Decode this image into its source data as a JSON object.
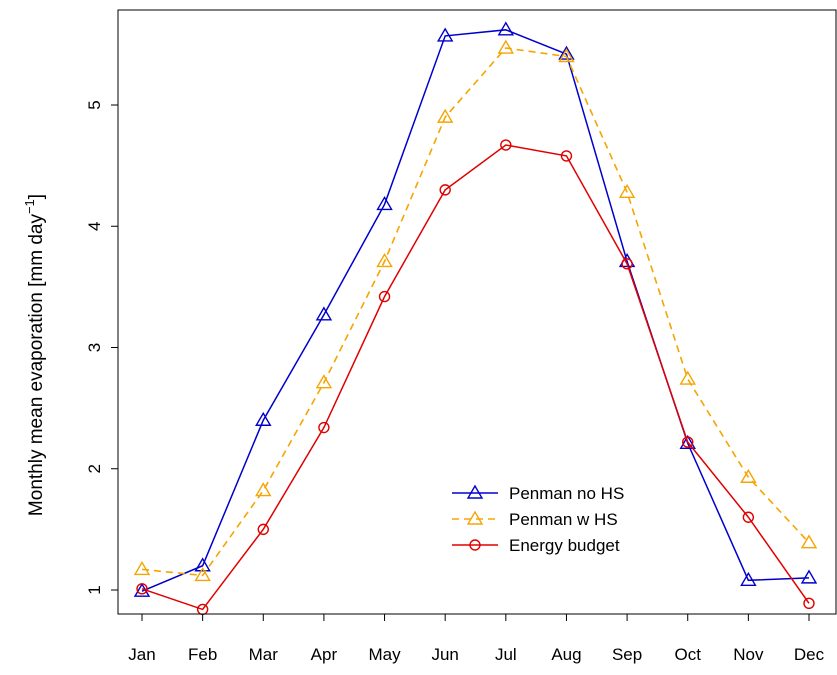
{
  "chart_data": {
    "type": "line",
    "title": "",
    "xlabel": "",
    "ylabel": "Monthly mean evaporation [mm day",
    "ylabel_sup": "−1",
    "ylabel_close": "]",
    "categories": [
      "Jan",
      "Feb",
      "Mar",
      "Apr",
      "May",
      "Jun",
      "Jul",
      "Aug",
      "Sep",
      "Oct",
      "Nov",
      "Dec"
    ],
    "ylim": [
      0.8,
      5.75
    ],
    "yticks": [
      1,
      2,
      3,
      4,
      5
    ],
    "grid": false,
    "legend_position": "bottom-right",
    "series": [
      {
        "name": "Penman no HS",
        "color": "#0000CD",
        "line": "solid",
        "marker": "triangle",
        "values": [
          0.99,
          1.2,
          2.4,
          3.27,
          4.18,
          5.57,
          5.62,
          5.42,
          3.71,
          2.21,
          1.08,
          1.1
        ]
      },
      {
        "name": "Penman w HS",
        "color": "#F5A500",
        "line": "dashed",
        "marker": "triangle",
        "values": [
          1.17,
          1.12,
          1.82,
          2.71,
          3.71,
          4.9,
          5.47,
          5.4,
          4.28,
          2.74,
          1.93,
          1.39
        ]
      },
      {
        "name": "Energy budget",
        "color": "#E00000",
        "line": "solid",
        "marker": "circle",
        "values": [
          1.01,
          0.84,
          1.5,
          2.34,
          3.42,
          4.3,
          4.67,
          4.58,
          3.69,
          2.22,
          1.6,
          0.89
        ]
      }
    ]
  }
}
